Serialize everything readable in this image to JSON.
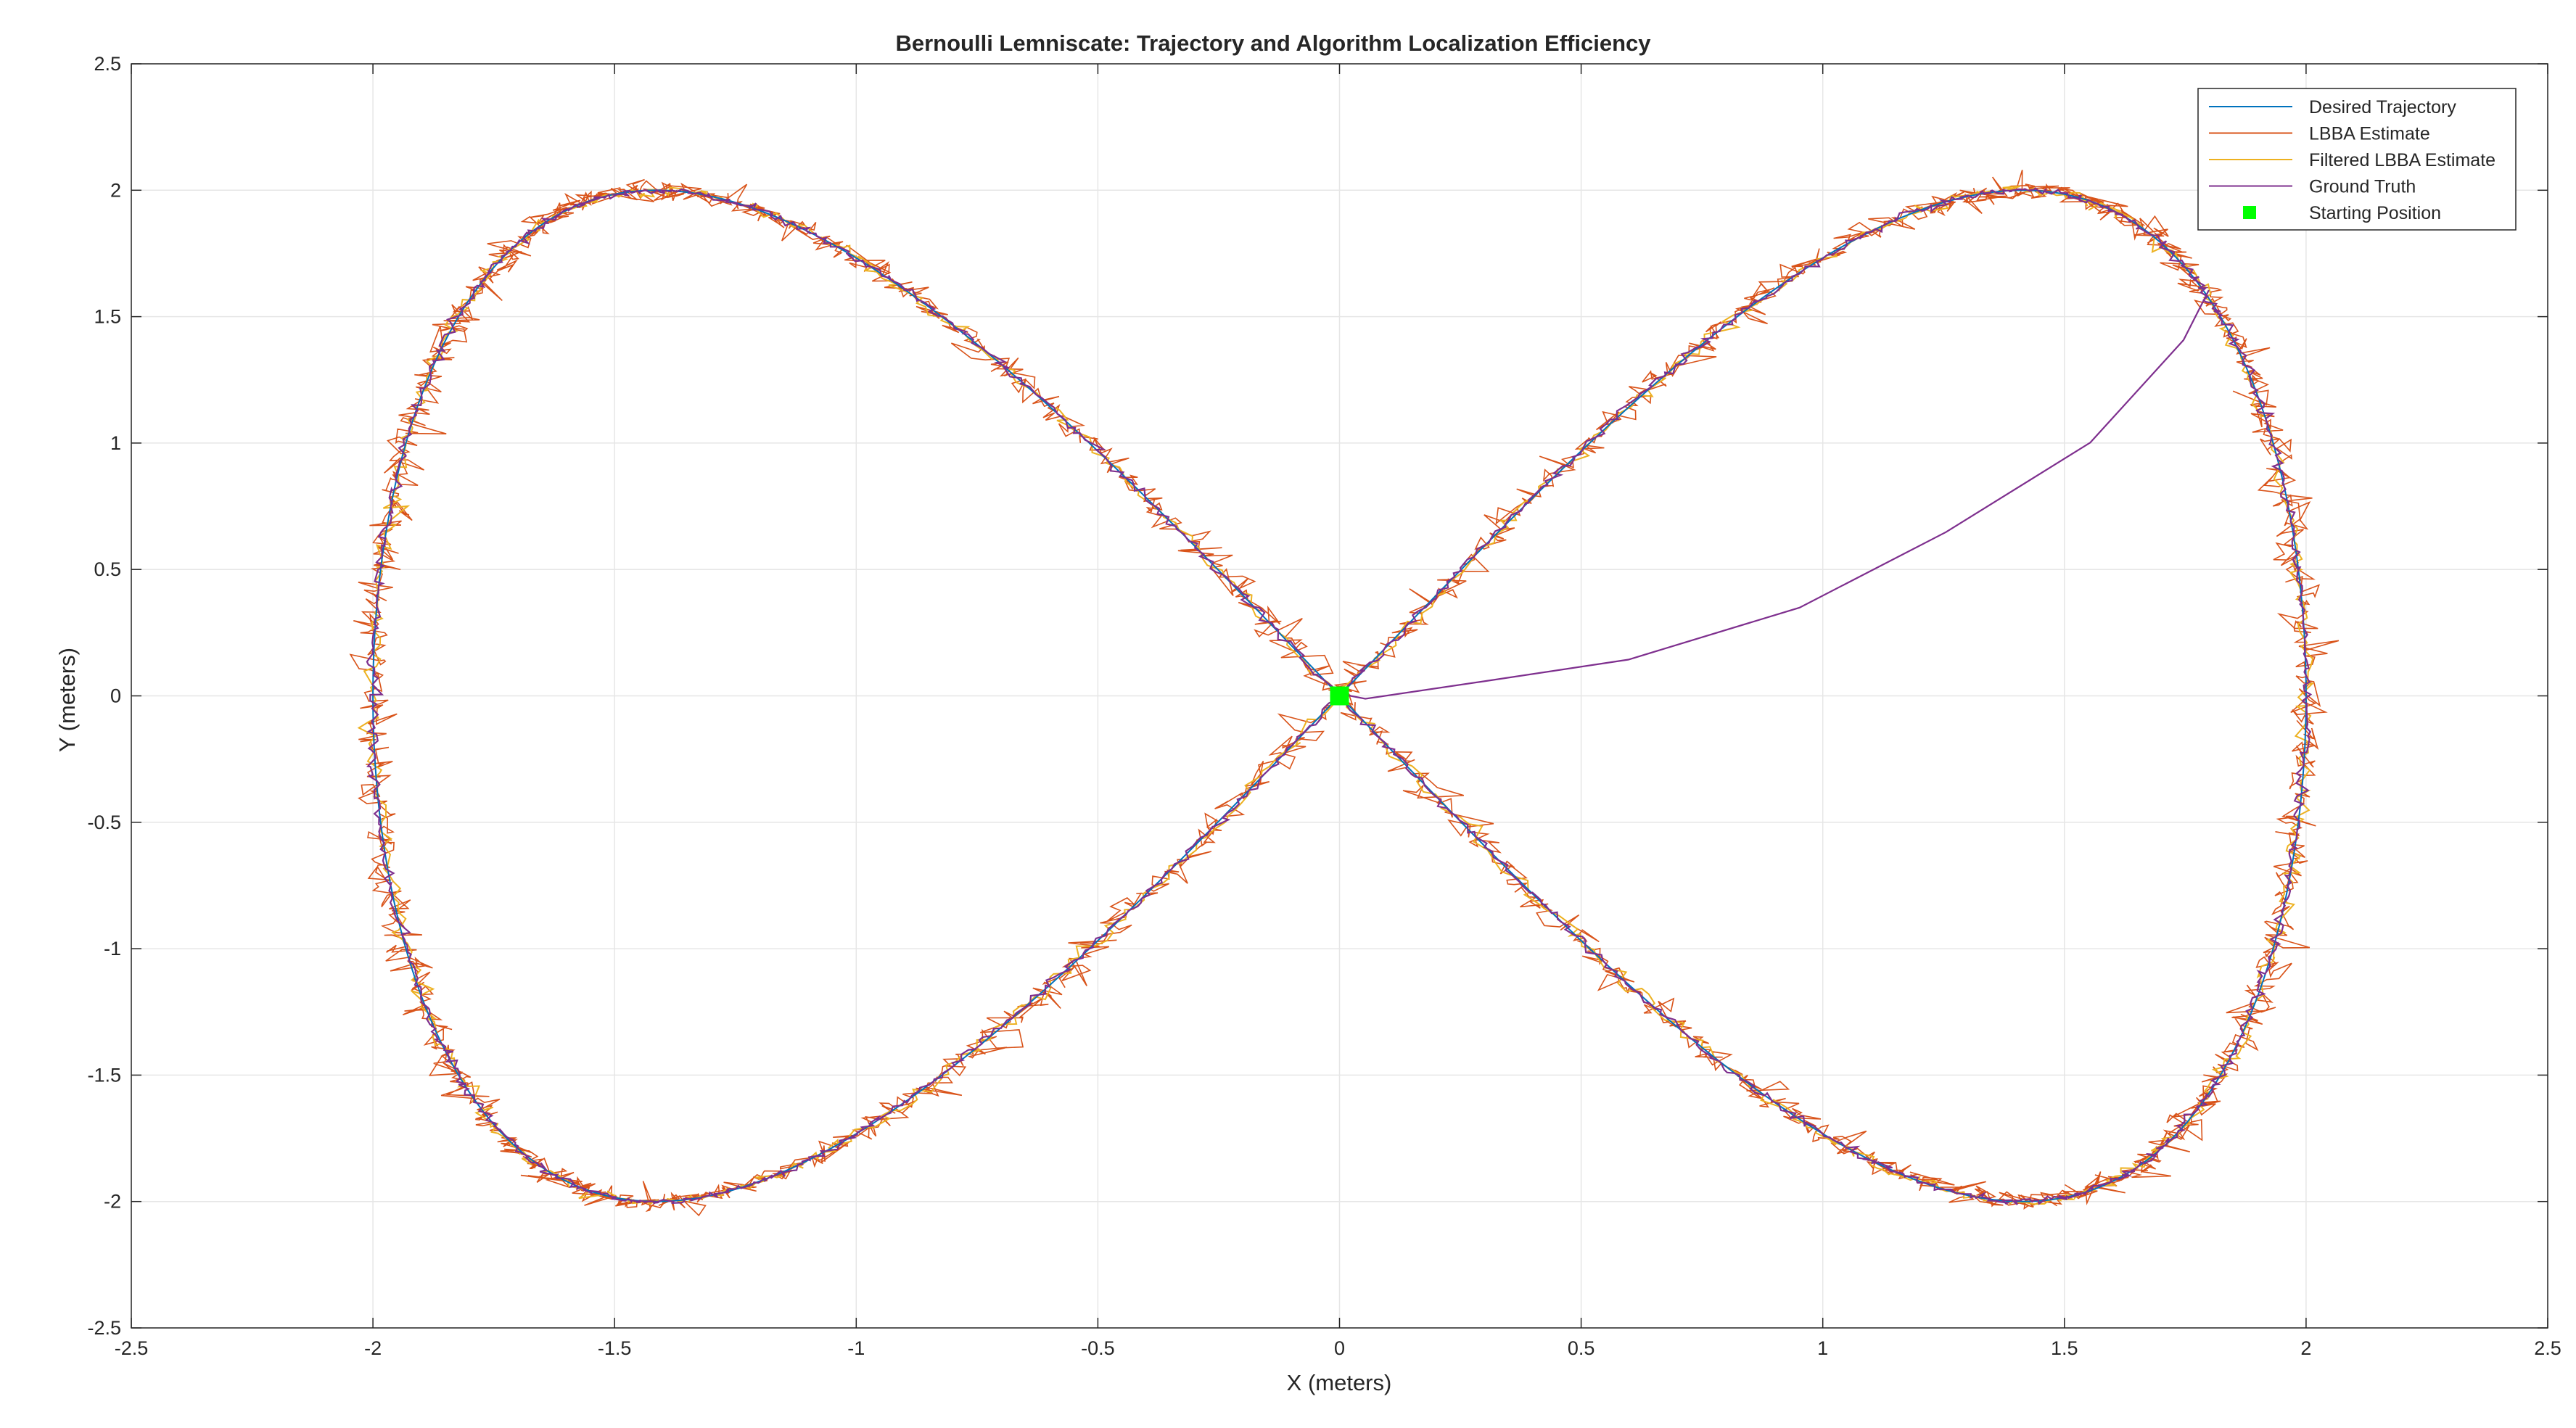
{
  "chart_data": {
    "type": "line",
    "title": "Bernoulli Lemniscate: Trajectory and Algorithm Localization Efficiency",
    "xlabel": "X (meters)",
    "ylabel": "Y (meters)",
    "xlim": [
      -2.5,
      2.5
    ],
    "ylim": [
      -2.5,
      2.5
    ],
    "xticks": [
      "-2.5",
      "-2",
      "-1.5",
      "-1",
      "-0.5",
      "0",
      "0.5",
      "1",
      "1.5",
      "2",
      "2.5"
    ],
    "yticks": [
      "2.5",
      "2",
      "1.5",
      "1",
      "0.5",
      "0",
      "-0.5",
      "-1",
      "-1.5",
      "-2",
      "-2.5"
    ],
    "grid": true,
    "legend_position": "top-right",
    "lemniscate_scale": 2,
    "series": [
      {
        "name": "Desired Trajectory",
        "color": "#0072BD",
        "style": "line"
      },
      {
        "name": "LBBA Estimate",
        "color": "#D95319",
        "style": "line"
      },
      {
        "name": "Filtered LBBA Estimate",
        "color": "#EDB120",
        "style": "line"
      },
      {
        "name": "Ground Truth",
        "color": "#7E2F8E",
        "style": "line"
      },
      {
        "name": "Starting Position",
        "color": "#00FF00",
        "style": "marker",
        "x": 0,
        "y": 0
      }
    ],
    "approach_path": [
      [
        0.05,
        -0.01
      ],
      [
        0.3,
        0.05
      ],
      [
        0.6,
        0.15
      ],
      [
        0.95,
        0.35
      ],
      [
        1.25,
        0.65
      ],
      [
        1.55,
        1.0
      ],
      [
        1.75,
        1.4
      ],
      [
        1.8,
        1.6
      ]
    ]
  }
}
